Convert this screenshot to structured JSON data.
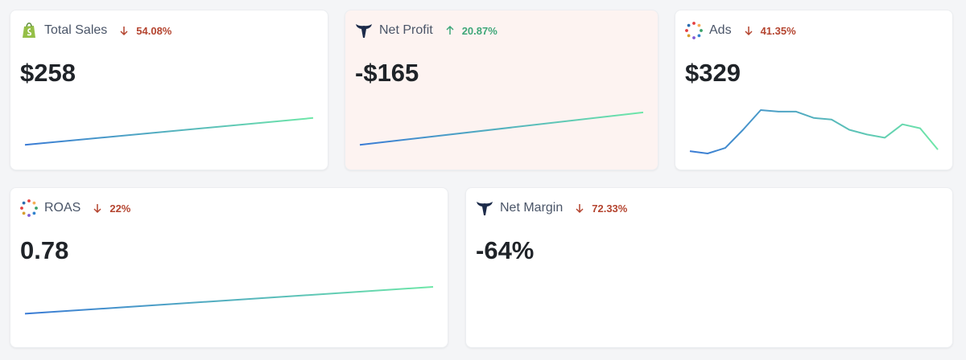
{
  "cards": [
    {
      "title": "Total Sales",
      "icon": "shopify",
      "trend": "down",
      "change": "54.08%",
      "value": "$258",
      "highlight": false,
      "sparkline": [
        11,
        45
      ]
    },
    {
      "title": "Net Profit",
      "icon": "whale",
      "trend": "up",
      "change": "20.87%",
      "value": "-$165",
      "highlight": true,
      "sparkline": [
        11,
        52
      ]
    },
    {
      "title": "Ads",
      "icon": "dots",
      "trend": "down",
      "change": "41.35%",
      "value": "$329",
      "highlight": false,
      "sparkline": [
        3,
        0,
        7,
        30,
        55,
        53,
        53,
        45,
        43,
        30,
        24,
        20,
        37,
        32,
        5
      ]
    },
    {
      "title": "ROAS",
      "icon": "dots",
      "trend": "down",
      "change": "22%",
      "value": "0.78",
      "highlight": false,
      "sparkline": [
        22,
        56
      ]
    },
    {
      "title": "Net Margin",
      "icon": "whale",
      "trend": "down",
      "change": "72.33%",
      "value": "-64%",
      "highlight": false
    }
  ]
}
